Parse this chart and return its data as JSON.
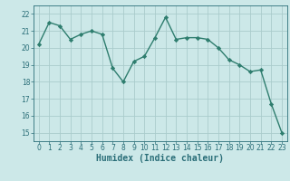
{
  "x": [
    0,
    1,
    2,
    3,
    4,
    5,
    6,
    7,
    8,
    9,
    10,
    11,
    12,
    13,
    14,
    15,
    16,
    17,
    18,
    19,
    20,
    21,
    22,
    23
  ],
  "y": [
    20.2,
    21.5,
    21.3,
    20.5,
    20.8,
    21.0,
    20.8,
    18.8,
    18.0,
    19.2,
    19.5,
    20.6,
    21.8,
    20.5,
    20.6,
    20.6,
    20.5,
    20.0,
    19.3,
    19.0,
    18.6,
    18.7,
    16.7,
    15.0
  ],
  "line_color": "#2e7d6e",
  "marker": "D",
  "marker_size": 2.2,
  "bg_color": "#cce8e8",
  "grid_color": "#aacccc",
  "xlabel": "Humidex (Indice chaleur)",
  "xlim": [
    -0.5,
    23.5
  ],
  "ylim": [
    14.5,
    22.5
  ],
  "yticks": [
    15,
    16,
    17,
    18,
    19,
    20,
    21,
    22
  ],
  "xticks": [
    0,
    1,
    2,
    3,
    4,
    5,
    6,
    7,
    8,
    9,
    10,
    11,
    12,
    13,
    14,
    15,
    16,
    17,
    18,
    19,
    20,
    21,
    22,
    23
  ],
  "tick_color": "#2a6e78",
  "tick_fontsize": 5.5,
  "xlabel_fontsize": 7.0,
  "linewidth": 1.0
}
